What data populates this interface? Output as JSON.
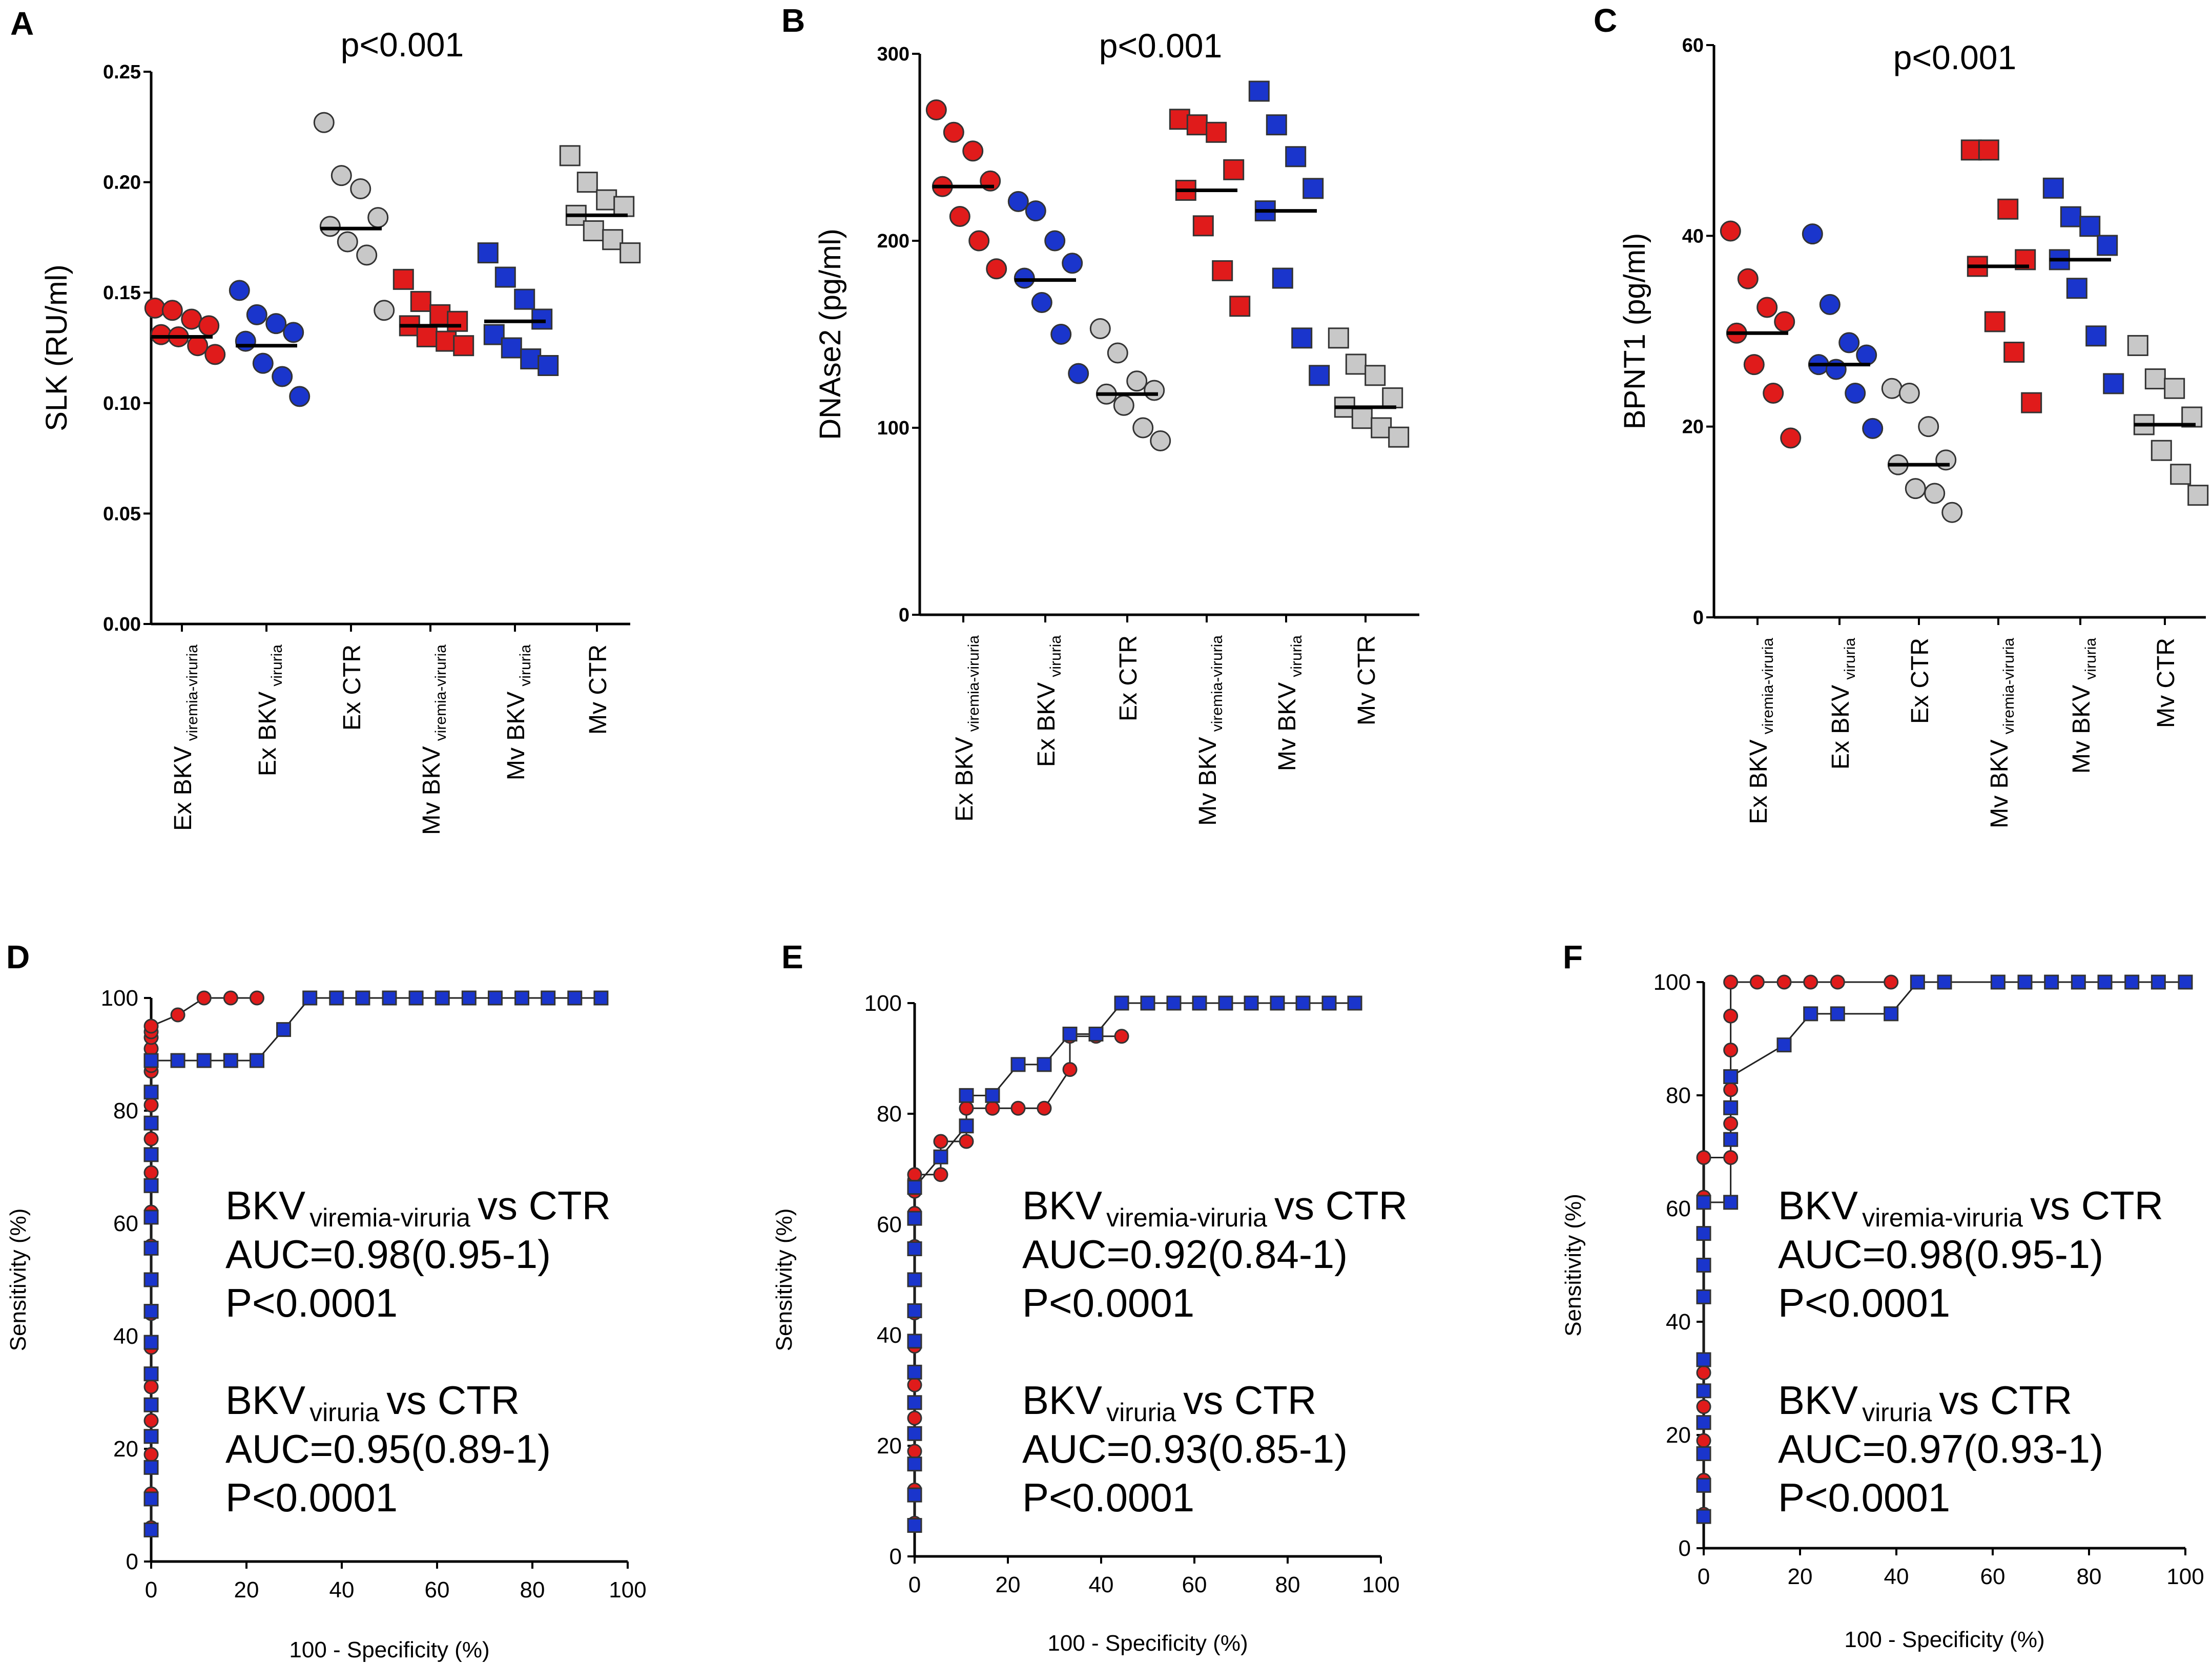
{
  "colors": {
    "red": "#e01b1b",
    "blue": "#1a35cc",
    "gray": "#c8c8c8",
    "outline": "#333333",
    "axis": "#000000"
  },
  "chart_data": [
    {
      "panel": "A",
      "type": "scatter",
      "annotation": "p<0.001",
      "ylabel": "SLK (RU/ml)",
      "ylim": [
        0,
        0.25
      ],
      "yticks": [
        0.0,
        0.05,
        0.1,
        0.15,
        0.2,
        0.25
      ],
      "ytick_labels": [
        "0.00",
        "0.05",
        "0.10",
        "0.15",
        "0.20",
        "0.25"
      ],
      "groups": [
        {
          "label_main": "Ex BKV",
          "label_sub": "viremia-viruria",
          "color": "red",
          "marker": "circle",
          "median": 0.13,
          "values": [
            0.143,
            0.142,
            0.138,
            0.135,
            0.131,
            0.13,
            0.126,
            0.122
          ]
        },
        {
          "label_main": "Ex BKV",
          "label_sub": "viruria",
          "color": "blue",
          "marker": "circle",
          "median": 0.126,
          "values": [
            0.151,
            0.14,
            0.136,
            0.132,
            0.128,
            0.118,
            0.112,
            0.103
          ]
        },
        {
          "label_main": "Ex CTR",
          "label_sub": "",
          "color": "gray",
          "marker": "circle",
          "median": 0.179,
          "values": [
            0.227,
            0.203,
            0.197,
            0.184,
            0.18,
            0.173,
            0.167,
            0.142
          ]
        },
        {
          "label_main": "Mv BKV",
          "label_sub": "viremia-viruria",
          "color": "red",
          "marker": "square",
          "median": 0.135,
          "values": [
            0.156,
            0.146,
            0.14,
            0.137,
            0.135,
            0.13,
            0.128,
            0.126
          ]
        },
        {
          "label_main": "Mv BKV",
          "label_sub": "viruria",
          "color": "blue",
          "marker": "square",
          "median": 0.137,
          "values": [
            0.168,
            0.157,
            0.147,
            0.138,
            0.131,
            0.125,
            0.12,
            0.117
          ]
        },
        {
          "label_main": "Mv CTR",
          "label_sub": "",
          "color": "gray",
          "marker": "square",
          "median": 0.185,
          "values": [
            0.212,
            0.2,
            0.192,
            0.189,
            0.185,
            0.178,
            0.174,
            0.168
          ]
        }
      ]
    },
    {
      "panel": "B",
      "type": "scatter",
      "annotation": "p<0.001",
      "ylabel": "DNAse2 (pg/ml)",
      "ylim": [
        0,
        300
      ],
      "yticks": [
        0,
        100,
        200,
        300
      ],
      "ytick_labels": [
        "0",
        "100",
        "200",
        "300"
      ],
      "groups": [
        {
          "label_main": "Ex BKV",
          "label_sub": "viremia-viruria",
          "color": "red",
          "marker": "circle",
          "median": 229,
          "values": [
            270,
            258,
            248,
            232,
            229,
            213,
            200,
            185
          ]
        },
        {
          "label_main": "Ex BKV",
          "label_sub": "viruria",
          "color": "blue",
          "marker": "circle",
          "median": 179,
          "values": [
            221,
            216,
            200,
            188,
            180,
            167,
            150,
            129
          ]
        },
        {
          "label_main": "Ex CTR",
          "label_sub": "",
          "color": "gray",
          "marker": "circle",
          "median": 118,
          "values": [
            153,
            140,
            125,
            120,
            118,
            112,
            100,
            93
          ]
        },
        {
          "label_main": "Mv BKV",
          "label_sub": "viremia-viruria",
          "color": "red",
          "marker": "square",
          "median": 227,
          "values": [
            265,
            262,
            258,
            238,
            227,
            208,
            184,
            165
          ]
        },
        {
          "label_main": "Mv BKV",
          "label_sub": "viruria",
          "color": "blue",
          "marker": "square",
          "median": 216,
          "values": [
            280,
            262,
            245,
            228,
            216,
            180,
            148,
            128
          ]
        },
        {
          "label_main": "Mv CTR",
          "label_sub": "",
          "color": "gray",
          "marker": "square",
          "median": 111,
          "values": [
            148,
            134,
            128,
            116,
            111,
            105,
            100,
            95
          ]
        }
      ]
    },
    {
      "panel": "C",
      "type": "scatter",
      "annotation": "p<0.001",
      "ylabel": "BPNT1 (pg/ml)",
      "ylim": [
        0,
        60
      ],
      "yticks": [
        0,
        20,
        40,
        60
      ],
      "ytick_labels": [
        "0",
        "20",
        "40",
        "60"
      ],
      "groups": [
        {
          "label_main": "Ex BKV",
          "label_sub": "viremia-viruria",
          "color": "red",
          "marker": "circle",
          "median": 29.8,
          "values": [
            40.5,
            35.5,
            32.5,
            31.0,
            29.8,
            26.5,
            23.5,
            18.8
          ]
        },
        {
          "label_main": "Ex BKV",
          "label_sub": "viruria",
          "color": "blue",
          "marker": "circle",
          "median": 26.5,
          "values": [
            40.2,
            32.8,
            28.8,
            27.5,
            26.5,
            26.0,
            23.5,
            19.8
          ]
        },
        {
          "label_main": "Ex CTR",
          "label_sub": "",
          "color": "gray",
          "marker": "circle",
          "median": 16.0,
          "values": [
            24.0,
            23.5,
            20.0,
            16.5,
            16.0,
            13.5,
            13.0,
            11.0
          ]
        },
        {
          "label_main": "Mv BKV",
          "label_sub": "viremia-viruria",
          "color": "red",
          "marker": "square",
          "median": 36.8,
          "values": [
            49.0,
            49.0,
            42.8,
            37.5,
            36.8,
            31.0,
            27.8,
            22.5
          ]
        },
        {
          "label_main": "Mv BKV",
          "label_sub": "viruria",
          "color": "blue",
          "marker": "square",
          "median": 37.5,
          "values": [
            45.0,
            42.0,
            41.0,
            39.0,
            37.5,
            34.5,
            29.5,
            24.5
          ]
        },
        {
          "label_main": "Mv CTR",
          "label_sub": "",
          "color": "gray",
          "marker": "square",
          "median": 20.2,
          "values": [
            28.5,
            25.0,
            24.0,
            21.0,
            20.2,
            17.5,
            15.0,
            12.8
          ]
        }
      ]
    },
    {
      "panel": "D",
      "type": "line",
      "xlabel": "100 - Specificity (%)",
      "ylabel": "Sensitivity (%)",
      "xlim": [
        0,
        100
      ],
      "ylim": [
        0,
        100
      ],
      "ticks": [
        0,
        20,
        40,
        60,
        80,
        100
      ],
      "stats": [
        {
          "name_main": "BKV",
          "name_sub": "viremia-viruria",
          "vs": "vs CTR",
          "auc": "AUC=0.98(0.95-1)",
          "p": "P<0.0001"
        },
        {
          "name_main": "BKV",
          "name_sub": "viruria",
          "vs": "vs CTR",
          "auc": "AUC=0.95(0.89-1)",
          "p": "P<0.0001"
        }
      ],
      "series": [
        {
          "name": "BKV viremia-viruria",
          "color": "red",
          "marker": "circle",
          "x": [
            0,
            0,
            0,
            0,
            0,
            0,
            0,
            0,
            0,
            0,
            0,
            0,
            0,
            0,
            0,
            0,
            0,
            0,
            0,
            0,
            5.6,
            11.1,
            16.7,
            22.2
          ],
          "y": [
            6,
            12,
            19,
            25,
            31,
            38,
            44,
            50,
            56,
            62,
            69,
            75,
            81,
            87,
            88,
            89,
            91,
            93,
            94,
            95,
            97,
            100,
            100,
            100
          ]
        },
        {
          "name": "BKV viruria",
          "color": "blue",
          "marker": "square",
          "x": [
            0,
            0,
            0,
            0,
            0,
            0,
            0,
            0,
            0,
            0,
            0,
            0,
            0,
            0,
            0,
            0,
            5.6,
            11.1,
            16.7,
            22.2,
            27.8,
            33.3,
            38.9,
            44.4,
            50,
            55.6,
            61.1,
            66.7,
            72.2,
            77.8,
            83.3,
            88.9,
            94.4
          ],
          "y": [
            5.6,
            11.1,
            16.7,
            22.2,
            27.8,
            33.3,
            38.9,
            44.4,
            50,
            55.6,
            61.1,
            66.7,
            72.2,
            77.8,
            83.3,
            88.9,
            88.9,
            88.9,
            88.9,
            88.9,
            94.4,
            100,
            100,
            100,
            100,
            100,
            100,
            100,
            100,
            100,
            100,
            100,
            100
          ]
        }
      ]
    },
    {
      "panel": "E",
      "type": "line",
      "xlabel": "100 - Specificity (%)",
      "ylabel": "Sensitivity (%)",
      "xlim": [
        0,
        100
      ],
      "ylim": [
        0,
        100
      ],
      "ticks": [
        0,
        20,
        40,
        60,
        80,
        100
      ],
      "stats": [
        {
          "name_main": "BKV",
          "name_sub": "viremia-viruria",
          "vs": "vs CTR",
          "auc": "AUC=0.92(0.84-1)",
          "p": "P<0.0001"
        },
        {
          "name_main": "BKV",
          "name_sub": "viruria",
          "vs": "vs CTR",
          "auc": "AUC=0.93(0.85-1)",
          "p": "P<0.0001"
        }
      ],
      "series": [
        {
          "name": "BKV viremia-viruria",
          "color": "red",
          "marker": "circle",
          "x": [
            0,
            0,
            0,
            0,
            0,
            0,
            0,
            0,
            0,
            0,
            0,
            0,
            0,
            5.6,
            5.6,
            11.1,
            11.1,
            16.7,
            22.2,
            27.8,
            33.3,
            33.3,
            38.9,
            44.4
          ],
          "y": [
            6,
            12,
            19,
            25,
            31,
            38,
            44,
            50,
            56,
            62,
            66,
            68,
            69,
            69,
            75,
            75,
            81,
            81,
            81,
            81,
            88,
            94,
            94,
            94
          ]
        },
        {
          "name": "BKV viruria",
          "color": "blue",
          "marker": "square",
          "x": [
            0,
            0,
            0,
            0,
            0,
            0,
            0,
            0,
            0,
            0,
            0,
            0,
            0,
            5.6,
            11.1,
            11.1,
            16.7,
            22.2,
            27.8,
            33.3,
            38.9,
            44.4,
            50,
            55.6,
            61.1,
            66.7,
            72.2,
            77.8,
            83.3,
            88.9,
            94.4
          ],
          "y": [
            5.6,
            11.1,
            16.7,
            22.2,
            27.8,
            33.3,
            38.9,
            44.4,
            50,
            55.6,
            61.1,
            66.7,
            66.7,
            72.2,
            77.8,
            83.3,
            83.3,
            88.9,
            88.9,
            94.4,
            94.4,
            100,
            100,
            100,
            100,
            100,
            100,
            100,
            100,
            100,
            100
          ]
        }
      ]
    },
    {
      "panel": "F",
      "type": "line",
      "xlabel": "100 - Specificity (%)",
      "ylabel": "Sensitivity (%)",
      "xlim": [
        0,
        100
      ],
      "ylim": [
        0,
        100
      ],
      "ticks": [
        0,
        20,
        40,
        60,
        80,
        100
      ],
      "stats": [
        {
          "name_main": "BKV",
          "name_sub": "viremia-viruria",
          "vs": "vs CTR",
          "auc": "AUC=0.98(0.95-1)",
          "p": "P<0.0001"
        },
        {
          "name_main": "BKV",
          "name_sub": "viruria",
          "vs": "vs CTR",
          "auc": "AUC=0.97(0.93-1)",
          "p": "P<0.0001"
        }
      ],
      "series": [
        {
          "name": "BKV viremia-viruria",
          "color": "red",
          "marker": "circle",
          "x": [
            0,
            0,
            0,
            0,
            0,
            0,
            0,
            5.6,
            5.6,
            5.6,
            5.6,
            5.6,
            5.6,
            11.1,
            16.7,
            22.2,
            27.8,
            38.9
          ],
          "y": [
            6,
            12,
            19,
            25,
            31,
            62,
            69,
            69,
            75,
            81,
            88,
            94,
            100,
            100,
            100,
            100,
            100,
            100
          ]
        },
        {
          "name": "BKV viruria",
          "color": "blue",
          "marker": "square",
          "x": [
            0,
            0,
            0,
            0,
            0,
            0,
            0,
            0,
            0,
            0,
            5.6,
            5.6,
            5.6,
            5.6,
            16.7,
            22.2,
            27.8,
            38.9,
            44.4,
            50,
            61.1,
            66.7,
            72.2,
            77.8,
            83.3,
            88.9,
            94.4,
            100
          ],
          "y": [
            5.6,
            11.1,
            16.7,
            22.2,
            27.8,
            33.3,
            44.4,
            50,
            55.6,
            61.1,
            61.1,
            72.2,
            77.8,
            83.3,
            88.9,
            94.4,
            94.4,
            94.4,
            100,
            100,
            100,
            100,
            100,
            100,
            100,
            100,
            100,
            100
          ]
        }
      ]
    }
  ]
}
